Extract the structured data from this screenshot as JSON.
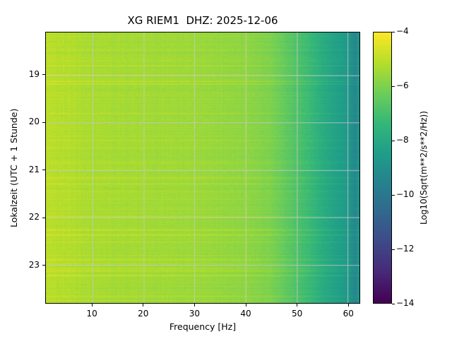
{
  "title": "XG RIEM1  DHZ: 2025-12-06",
  "colors": {
    "background": "#ffffff",
    "axis": "#000000",
    "grid": "#c8c8c8",
    "viridis_stops": [
      "#440154",
      "#482878",
      "#3e4989",
      "#31688e",
      "#26828e",
      "#1f9e89",
      "#35b779",
      "#6ece58",
      "#b5de2b",
      "#fde725"
    ]
  },
  "chart_data": {
    "type": "heatmap",
    "subtype": "spectrogram",
    "title": "XG RIEM1  DHZ: 2025-12-06",
    "xlabel": "Frequency [Hz]",
    "ylabel": "Lokalzeit (UTC + 1 Stunde)",
    "colorbar_label": "Log10(Sqrt(m**2/s**2/Hz))",
    "colormap": "viridis",
    "grid": true,
    "x_range": [
      0.9,
      62.3
    ],
    "y_range": [
      18.1,
      23.8
    ],
    "x_ticks": [
      10,
      20,
      30,
      40,
      50,
      60
    ],
    "x_tick_labels": [
      "10",
      "20",
      "30",
      "40",
      "50",
      "60"
    ],
    "y_ticks": [
      19,
      20,
      21,
      22,
      23
    ],
    "y_tick_labels": [
      "19",
      "20",
      "21",
      "22",
      "23"
    ],
    "colorbar_range": [
      -14,
      -4
    ],
    "colorbar_ticks": [
      -4,
      -6,
      -8,
      -10,
      -12,
      -14
    ],
    "colorbar_tick_labels": [
      "−4",
      "−6",
      "−8",
      "−10",
      "−12",
      "−14"
    ],
    "amplitude_profile": {
      "description": "Approximate Log10(Sqrt(m**2/s**2/Hz)) versus frequency; roughly stationary over the 18:06-23:48 local-time window, with sporadic brighter horizontal event streaks",
      "frequencies_hz": [
        0.9,
        3,
        10,
        20,
        30,
        40,
        45,
        50,
        53,
        55,
        58,
        60,
        61.5,
        62.3
      ],
      "values": [
        -5.0,
        -5.1,
        -5.3,
        -5.4,
        -5.5,
        -5.7,
        -6.0,
        -6.8,
        -7.3,
        -7.8,
        -8.3,
        -8.6,
        -9.3,
        -8.8
      ]
    },
    "noise": {
      "row_sigma": 0.18,
      "cell_sigma": 0.16,
      "streak_chance": 0.055,
      "streak_boost": 0.45
    }
  }
}
